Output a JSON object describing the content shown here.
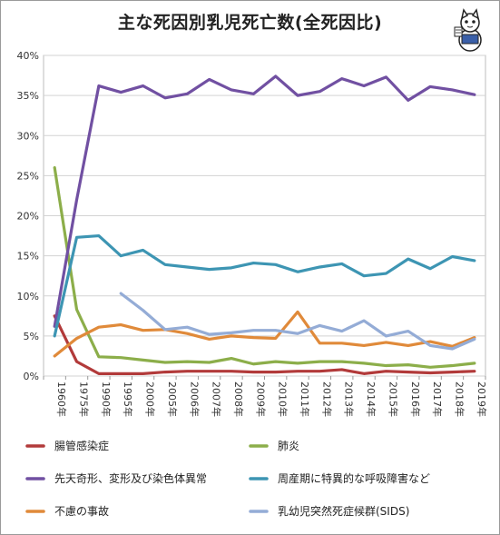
{
  "chart_data": {
    "type": "line",
    "title": "主な死因別乳児死亡数(全死因比)",
    "categories": [
      "1960年",
      "1975年",
      "1990年",
      "1995年",
      "2000年",
      "2005年",
      "2006年",
      "2007年",
      "2008年",
      "2009年",
      "2010年",
      "2011年",
      "2012年",
      "2013年",
      "2014年",
      "2015年",
      "2016年",
      "2017年",
      "2018年",
      "2019年"
    ],
    "ylim": [
      0,
      40
    ],
    "yticks": [
      0,
      5,
      10,
      15,
      20,
      25,
      30,
      35,
      40
    ],
    "ytick_labels": [
      "0%",
      "5%",
      "10%",
      "15%",
      "20%",
      "25%",
      "30%",
      "35%",
      "40%"
    ],
    "grid": true,
    "legend_position": "bottom",
    "series": [
      {
        "name": "腸管感染症",
        "color": "#b23a3a",
        "values": [
          7.5,
          1.8,
          0.3,
          0.3,
          0.3,
          0.5,
          0.6,
          0.6,
          0.6,
          0.5,
          0.5,
          0.6,
          0.6,
          0.8,
          0.3,
          0.6,
          0.5,
          0.4,
          0.5,
          0.6
        ]
      },
      {
        "name": "肺炎",
        "color": "#8cae4a",
        "values": [
          26.0,
          8.3,
          2.4,
          2.3,
          2.0,
          1.7,
          1.8,
          1.7,
          2.2,
          1.5,
          1.8,
          1.6,
          1.8,
          1.8,
          1.6,
          1.3,
          1.4,
          1.1,
          1.3,
          1.6
        ]
      },
      {
        "name": "先天奇形、変形及び染色体異常",
        "color": "#7150a2",
        "values": [
          6.2,
          22.0,
          36.2,
          35.4,
          36.2,
          34.7,
          35.2,
          37.0,
          35.7,
          35.2,
          37.4,
          35.0,
          35.5,
          37.1,
          36.2,
          37.3,
          34.4,
          36.1,
          35.7,
          35.1
        ]
      },
      {
        "name": "周産期に特異的な呼吸障害など",
        "color": "#3d95b3",
        "values": [
          5.0,
          17.3,
          17.5,
          15.0,
          15.7,
          13.9,
          13.6,
          13.3,
          13.5,
          14.1,
          13.9,
          13.0,
          13.6,
          14.0,
          12.5,
          12.8,
          14.6,
          13.4,
          14.9,
          14.4
        ]
      },
      {
        "name": "不慮の事故",
        "color": "#e08a3a",
        "values": [
          2.5,
          4.7,
          6.1,
          6.4,
          5.7,
          5.8,
          5.3,
          4.6,
          5.0,
          4.8,
          4.7,
          8.0,
          4.1,
          4.1,
          3.8,
          4.2,
          3.8,
          4.3,
          3.7,
          4.8
        ]
      },
      {
        "name": "乳幼児突然死症候群(SIDS)",
        "color": "#94acd6",
        "values": [
          null,
          null,
          null,
          10.3,
          8.2,
          5.8,
          6.1,
          5.2,
          5.4,
          5.7,
          5.7,
          5.3,
          6.3,
          5.6,
          6.9,
          5.0,
          5.6,
          3.8,
          3.4,
          4.6
        ]
      }
    ]
  },
  "mascot": {
    "icon": "cat-mascot-icon"
  }
}
